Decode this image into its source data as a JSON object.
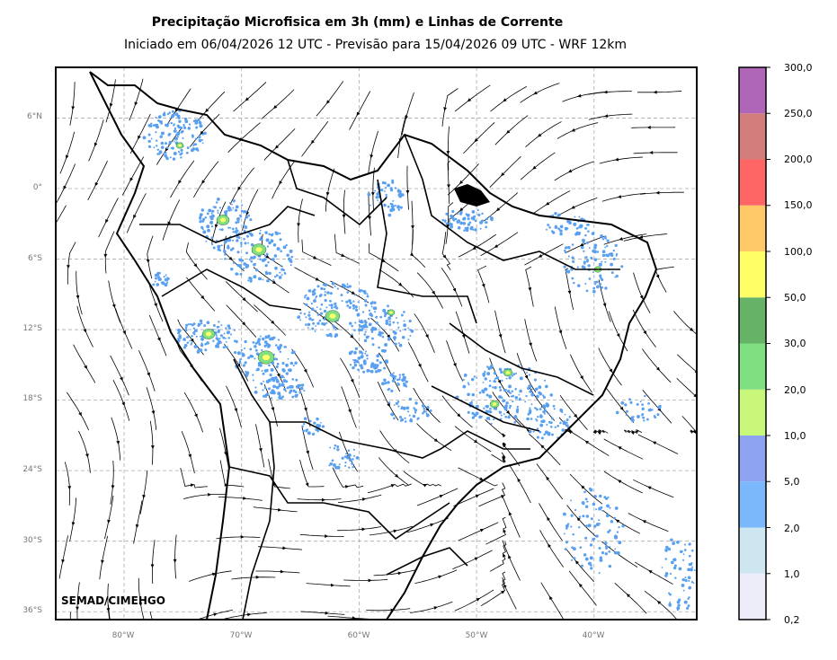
{
  "title": "Precipitação Microfisica em 3h (mm) e Linhas de Corrente",
  "subtitle": "Iniciado em 06/04/2026 12 UTC - Previsão para 15/04/2026 09 UTC - WRF 12km",
  "credit": "SEMAD/CIMEHGO",
  "lat_labels": [
    "6°N",
    "0°",
    "6°S",
    "12°S",
    "18°S",
    "24°S",
    "30°S",
    "36°S"
  ],
  "lon_labels": [
    "80°W",
    "70°W",
    "60°W",
    "50°W",
    "40°W"
  ],
  "colorbar": {
    "labels": [
      "0,2",
      "1,0",
      "2,0",
      "5,0",
      "10,0",
      "20,0",
      "30,0",
      "50,0",
      "100,0",
      "150,0",
      "200,0",
      "250,0",
      "300,0"
    ],
    "colors": [
      "#ededfa",
      "#cde6f0",
      "#7ab8fb",
      "#8ea3ef",
      "#c8f77a",
      "#80df80",
      "#66b266",
      "#fefe66",
      "#fec866",
      "#fe6666",
      "#d27c7c",
      "#b066b8"
    ]
  },
  "colors": {
    "rain_light": "#5aa0f0",
    "rain_mid": "#80df80",
    "rain_heavy": "#fefe66",
    "streamline": "#000000",
    "border": "#000000",
    "grid": "#aaaaaa"
  }
}
